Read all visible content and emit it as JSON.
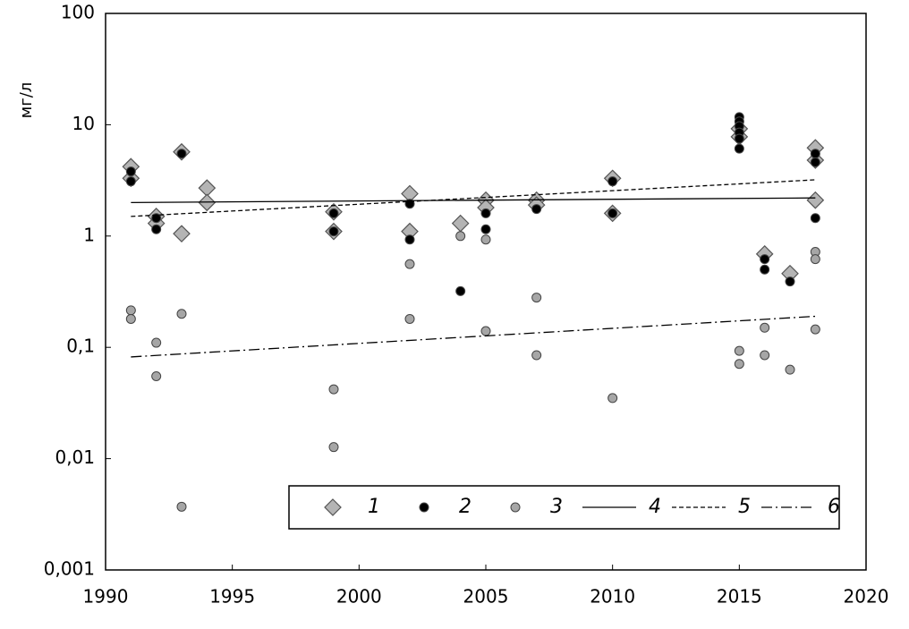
{
  "chart_data": {
    "type": "scatter",
    "y_label": "мг/л",
    "yscale": "log",
    "xlim": [
      1990,
      2020
    ],
    "xticks": [
      1990,
      1995,
      2000,
      2005,
      2010,
      2015,
      2020
    ],
    "ylim": [
      0.001,
      100
    ],
    "yticks": [
      {
        "value": 0.001,
        "label": "0,001"
      },
      {
        "value": 0.01,
        "label": "0,01"
      },
      {
        "value": 0.1,
        "label": "0,1"
      },
      1,
      10,
      100
    ],
    "legend": "lower right",
    "series": [
      {
        "name": "1",
        "type": "scatter",
        "marker": "diamond",
        "color": "#b4b4b4",
        "x": [
          1991,
          1991,
          1992,
          1992,
          1993,
          1993,
          1994,
          1994,
          1999,
          1999,
          2002,
          2002,
          2004,
          2005,
          2005,
          2007,
          2007,
          2010,
          2010,
          2015,
          2015,
          2016,
          2017,
          2018,
          2018,
          2018
        ],
        "values": [
          4.2,
          3.3,
          1.5,
          1.3,
          5.7,
          1.05,
          2.7,
          2.0,
          1.65,
          1.1,
          2.4,
          1.1,
          1.3,
          2.1,
          1.8,
          2.1,
          1.9,
          3.3,
          1.6,
          9.2,
          7.8,
          0.69,
          0.46,
          6.2,
          4.8,
          2.1
        ]
      },
      {
        "name": "2",
        "type": "scatter",
        "marker": "circle",
        "color": "#000000",
        "x": [
          1991,
          1991,
          1992,
          1992,
          1993,
          1999,
          1999,
          2002,
          2002,
          2004,
          2005,
          2005,
          2007,
          2010,
          2010,
          2015,
          2015,
          2015,
          2015,
          2015,
          2015,
          2016,
          2016,
          2017,
          2018,
          2018,
          2018
        ],
        "values": [
          3.8,
          3.1,
          1.45,
          1.15,
          5.5,
          1.6,
          1.1,
          1.95,
          0.93,
          0.32,
          1.6,
          1.15,
          1.75,
          3.1,
          1.6,
          11.7,
          10.7,
          9.7,
          8.5,
          7.5,
          6.1,
          0.62,
          0.5,
          0.39,
          5.5,
          4.6,
          1.45
        ]
      },
      {
        "name": "3",
        "type": "scatter",
        "marker": "circle",
        "color": "#a6a6a6",
        "x": [
          1991,
          1991,
          1992,
          1992,
          1993,
          1993,
          1999,
          1999,
          2002,
          2002,
          2004,
          2005,
          2005,
          2007,
          2007,
          2010,
          2015,
          2015,
          2016,
          2016,
          2017,
          2018,
          2018,
          2018
        ],
        "values": [
          0.215,
          0.18,
          0.11,
          0.055,
          0.2,
          0.0037,
          0.042,
          0.0127,
          0.56,
          0.18,
          1.0,
          0.93,
          0.14,
          0.28,
          0.085,
          0.035,
          0.093,
          0.071,
          0.15,
          0.085,
          0.063,
          0.72,
          0.62,
          0.145
        ]
      },
      {
        "name": "4",
        "type": "line",
        "style": "solid",
        "color": "#000000",
        "x": [
          1991,
          2018
        ],
        "values": [
          2.0,
          2.2
        ]
      },
      {
        "name": "5",
        "type": "line",
        "style": "dashed",
        "color": "#000000",
        "x": [
          1991,
          2018
        ],
        "values": [
          1.5,
          3.2
        ]
      },
      {
        "name": "6",
        "type": "line",
        "style": "dashdot",
        "color": "#000000",
        "x": [
          1991,
          2018
        ],
        "values": [
          0.082,
          0.19
        ]
      }
    ]
  }
}
